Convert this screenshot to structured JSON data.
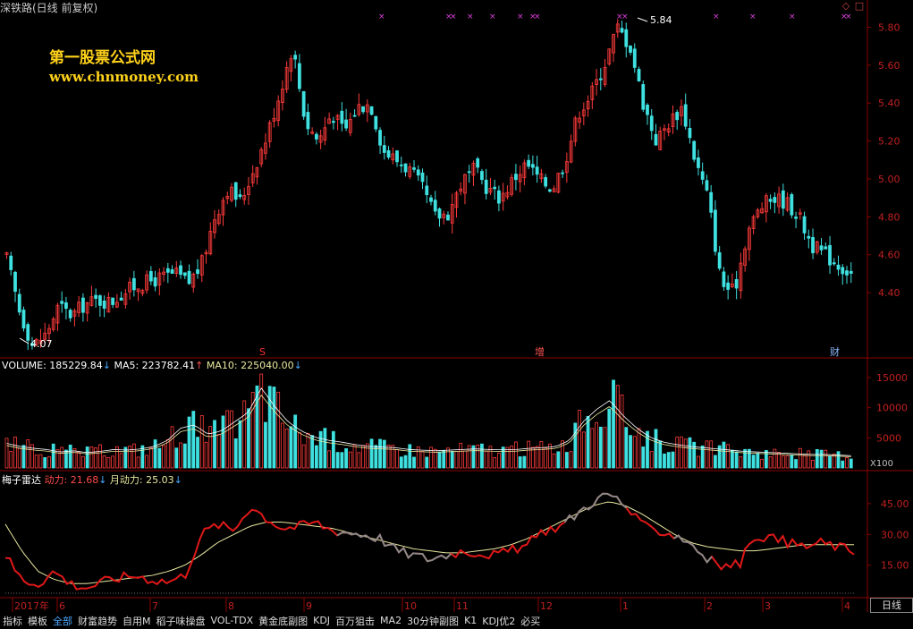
{
  "title": "深铁路(日线 前复权)",
  "watermark": {
    "line1": "第一股票公式网",
    "line2": "www.chnmoney.com"
  },
  "volume_panel": {
    "label": "VOLUME: 185229.84",
    "ma5": "MA5: 223782.41",
    "ma10": "MA10: 225040.00"
  },
  "indicator_panel": {
    "name": "梅子雷达",
    "dongli": "动力: 21.68",
    "yuedongli": "月动力: 25.03"
  },
  "annotations": {
    "high": "5.84",
    "low": "4.07",
    "event1": "S",
    "event2": "增",
    "event3": "财"
  },
  "day_line_button": "日线",
  "volume_unit": "X100",
  "toolbar": [
    {
      "label": "指标",
      "active": false
    },
    {
      "label": "模板",
      "active": false
    },
    {
      "label": "全部",
      "active": true
    },
    {
      "label": "财富趋势",
      "active": false
    },
    {
      "label": "自用M",
      "active": false
    },
    {
      "label": "稻子味操盘",
      "active": false
    },
    {
      "label": "VOL-TDX",
      "active": false
    },
    {
      "label": "黄金底副图",
      "active": false
    },
    {
      "label": "KDJ",
      "active": false
    },
    {
      "label": "百万狙击",
      "active": false
    },
    {
      "label": "MA2",
      "active": false
    },
    {
      "label": "30分钟副图",
      "active": false
    },
    {
      "label": "K1",
      "active": false
    },
    {
      "label": "KDJ优2",
      "active": false
    },
    {
      "label": "必买",
      "active": false
    }
  ],
  "colors": {
    "up": "#ff3b3b",
    "down": "#3fe0e0",
    "ma": "#e8e8a0",
    "red_line": "#e01818",
    "grid": "#8b0000"
  },
  "chart_data": [
    {
      "type": "candlestick",
      "title": "深铁路(日线 前复权)",
      "y_ticks": [
        "5.80",
        "5.60",
        "5.40",
        "5.20",
        "5.00",
        "4.80",
        "4.60",
        "4.40"
      ],
      "ylim": [
        4.07,
        5.84
      ],
      "x_ticks": [
        "2017年",
        "6",
        "7",
        "8",
        "9",
        "10",
        "11",
        "12",
        "1",
        "2",
        "3",
        "4"
      ],
      "marked_high": 5.84,
      "marked_low": 4.07,
      "close_path": [
        4.58,
        4.3,
        4.12,
        4.18,
        4.33,
        4.28,
        4.34,
        4.36,
        4.35,
        4.4,
        4.44,
        4.46,
        4.48,
        4.5,
        4.45,
        4.55,
        4.8,
        4.95,
        4.88,
        5.05,
        5.22,
        5.45,
        5.7,
        5.3,
        5.2,
        5.35,
        5.25,
        5.38,
        5.4,
        5.15,
        5.1,
        5.05,
        4.95,
        4.8,
        4.82,
        4.98,
        5.05,
        4.95,
        4.9,
        5.0,
        5.08,
        5.0,
        4.95,
        5.1,
        5.35,
        5.45,
        5.6,
        5.8,
        5.7,
        5.4,
        5.2,
        5.3,
        5.38,
        5.1,
        4.9,
        4.45,
        4.4,
        4.72,
        4.85,
        4.9,
        4.88,
        4.8,
        4.65,
        4.6,
        4.55,
        4.5
      ]
    },
    {
      "type": "bar",
      "title": "VOLUME",
      "y_ticks": [
        "15000",
        "10000",
        "5000"
      ],
      "ylim": [
        0,
        15000
      ],
      "unit": "X100",
      "volume_path": [
        4000,
        3500,
        3200,
        3000,
        2600,
        2800,
        2500,
        2700,
        3000,
        2900,
        3100,
        3500,
        4500,
        6500,
        7000,
        5500,
        6000,
        7500,
        9000,
        13000,
        10000,
        7500,
        6000,
        5000,
        4500,
        4200,
        3800,
        3500,
        3400,
        3300,
        3000,
        2900,
        2800,
        2900,
        3000,
        3100,
        3000,
        2950,
        3000,
        3200,
        3300,
        3500,
        4500,
        7500,
        9500,
        11000,
        8500,
        6500,
        5000,
        4200,
        3800,
        3500,
        3300,
        3100,
        2900,
        2700,
        2600,
        2500,
        2400,
        2300,
        2200,
        2200,
        2100,
        2000
      ]
    },
    {
      "type": "line",
      "title": "梅子雷达",
      "y_ticks": [
        "45.00",
        "30.00",
        "15.00"
      ],
      "ylim": [
        0,
        55
      ],
      "series": [
        {
          "name": "动力",
          "values": [
            20,
            8,
            6,
            12,
            6,
            4,
            7,
            9,
            10,
            8,
            7,
            10,
            30,
            35,
            32,
            44,
            38,
            33,
            34,
            36,
            32,
            31,
            30,
            28,
            22,
            20,
            18,
            20,
            22,
            21,
            20,
            22,
            25,
            32,
            34,
            40,
            46,
            50,
            44,
            34,
            32,
            30,
            26,
            18,
            14,
            16,
            30,
            28,
            26,
            24,
            26,
            24,
            22
          ]
        },
        {
          "name": "月动力",
          "values": [
            35,
            22,
            12,
            8,
            6,
            6,
            7,
            8,
            9,
            10,
            12,
            15,
            20,
            26,
            30,
            34,
            36,
            36,
            35,
            34,
            33,
            31,
            29,
            27,
            25,
            23,
            22,
            21,
            21,
            22,
            23,
            25,
            28,
            32,
            36,
            40,
            44,
            46,
            44,
            40,
            35,
            30,
            26,
            24,
            23,
            22,
            22,
            23,
            24,
            25,
            25,
            25,
            25
          ]
        }
      ]
    }
  ]
}
